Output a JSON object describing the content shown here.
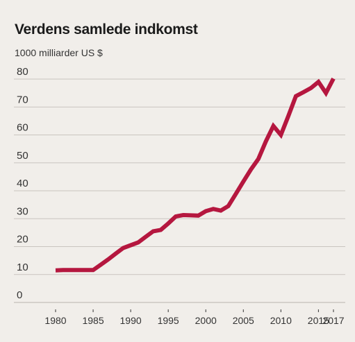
{
  "chart_data": {
    "type": "line",
    "title": "Verdens samlede indkomst",
    "ylabel": "1000 milliarder US $",
    "xlabel": "",
    "xlim": [
      1980,
      2017
    ],
    "ylim": [
      0,
      80
    ],
    "y_ticks": [
      0,
      10,
      20,
      30,
      40,
      50,
      60,
      70,
      80
    ],
    "x_ticks": [
      1980,
      1985,
      1990,
      1995,
      2000,
      2005,
      2010,
      2015,
      2017
    ],
    "grid": true,
    "legend": "none",
    "line_color": "#b5173f",
    "series": [
      {
        "x": [
          1980,
          1981,
          1982,
          1983,
          1984,
          1985,
          1986,
          1987,
          1988,
          1989,
          1990,
          1991,
          1992,
          1993,
          1994,
          1995,
          1996,
          1997,
          1998,
          1999,
          2000,
          2001,
          2002,
          2003,
          2004,
          2005,
          2006,
          2007,
          2008,
          2009,
          2010,
          2011,
          2012,
          2013,
          2014,
          2015,
          2016,
          2017
        ],
        "y": [
          11.5,
          11.6,
          11.6,
          11.6,
          11.6,
          11.6,
          13.5,
          15.4,
          17.5,
          19.5,
          20.5,
          21.5,
          23.5,
          25.5,
          26.0,
          28.3,
          30.8,
          31.3,
          31.2,
          31.1,
          32.7,
          33.5,
          32.9,
          34.5,
          38.9,
          43.3,
          47.6,
          51.4,
          57.7,
          63.2,
          60.0,
          66.8,
          73.9,
          75.3,
          76.8,
          79.0,
          75.0,
          80.2
        ]
      }
    ]
  }
}
